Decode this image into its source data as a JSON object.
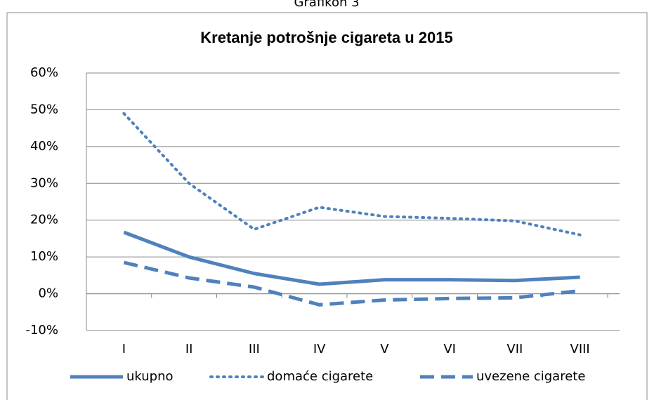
{
  "caption": "Grafikon 3",
  "chart_data": {
    "type": "line",
    "title": "Kretanje potrošnje cigareta u 2015",
    "categories": [
      "I",
      "II",
      "III",
      "IV",
      "V",
      "VI",
      "VII",
      "VIII"
    ],
    "series": [
      {
        "name": "ukupno",
        "color": "#4f81bd",
        "style": "solid",
        "values": [
          16.7,
          10,
          5.5,
          2.6,
          3.8,
          3.8,
          3.6,
          4.5
        ]
      },
      {
        "name": "domaće cigarete",
        "color": "#4f81bd",
        "style": "dotted",
        "values": [
          49,
          30,
          17.5,
          23.5,
          21,
          20.5,
          19.8,
          16
        ]
      },
      {
        "name": "uvezene cigarete",
        "color": "#4f81bd",
        "style": "dashed",
        "values": [
          8.5,
          4.3,
          1.8,
          -3,
          -1.7,
          -1.3,
          -1.1,
          0.8
        ]
      }
    ],
    "ylim": [
      -10,
      60
    ],
    "yticks": [
      {
        "value": -10,
        "label": "-10%"
      },
      {
        "value": 0,
        "label": "0%"
      },
      {
        "value": 10,
        "label": "10%"
      },
      {
        "value": 20,
        "label": "20%"
      },
      {
        "value": 30,
        "label": "30%"
      },
      {
        "value": 40,
        "label": "40%"
      },
      {
        "value": 50,
        "label": "50%"
      },
      {
        "value": 60,
        "label": "60%"
      }
    ],
    "grid": true,
    "legend": "bottom"
  }
}
